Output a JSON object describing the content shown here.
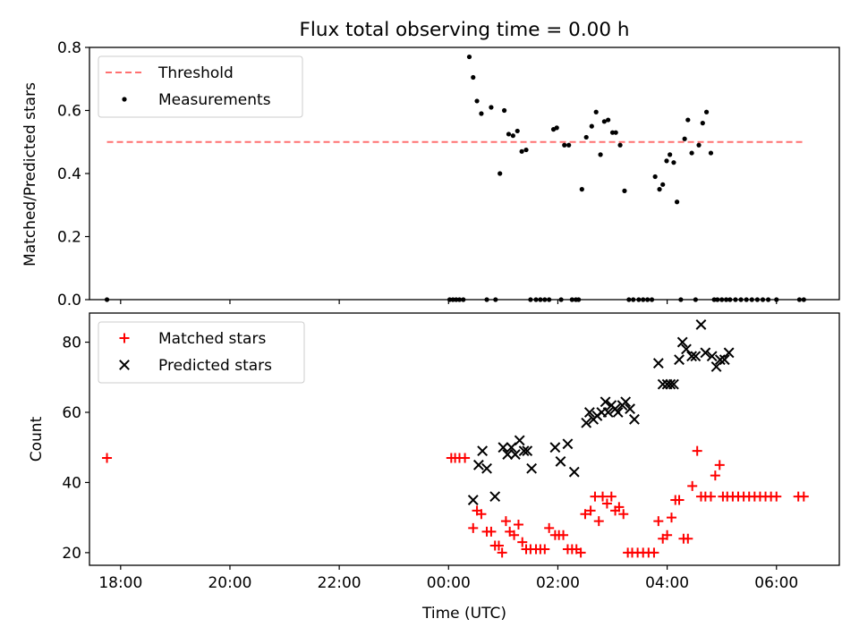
{
  "title": "Flux total observing time = 0.00 h",
  "xlabel": "Time (UTC)",
  "xticks": [
    {
      "t": -6.0,
      "label": "18:00"
    },
    {
      "t": -4.0,
      "label": "20:00"
    },
    {
      "t": -2.0,
      "label": "22:00"
    },
    {
      "t": 0.0,
      "label": "00:00"
    },
    {
      "t": 2.0,
      "label": "02:00"
    },
    {
      "t": 4.0,
      "label": "04:00"
    },
    {
      "t": 6.0,
      "label": "06:00"
    }
  ],
  "chart_data": [
    {
      "type": "scatter",
      "ylabel": "Matched/Predicted stars",
      "xlim": [
        -6.57,
        7.15
      ],
      "ylim": [
        0,
        0.8
      ],
      "yticks": [
        "0.0",
        "0.2",
        "0.4",
        "0.6",
        "0.8"
      ],
      "legend_position": "top-left",
      "threshold": {
        "name": "Threshold",
        "value": 0.5,
        "x": [
          -6.25,
          6.5
        ],
        "color": "#ff7070"
      },
      "series": [
        {
          "name": "Measurements",
          "color": "#000000",
          "marker": "dot",
          "x": [
            -6.25,
            0.02,
            0.08,
            0.14,
            0.2,
            0.27,
            0.38,
            0.45,
            0.52,
            0.6,
            0.7,
            0.78,
            0.86,
            0.94,
            1.02,
            1.1,
            1.18,
            1.26,
            1.34,
            1.42,
            1.5,
            1.6,
            1.68,
            1.76,
            1.84,
            1.92,
            1.98,
            2.06,
            2.12,
            2.2,
            2.26,
            2.33,
            2.38,
            2.44,
            2.52,
            2.62,
            2.7,
            2.78,
            2.85,
            2.92,
            3.0,
            3.06,
            3.14,
            3.22,
            3.3,
            3.38,
            3.48,
            3.56,
            3.64,
            3.72,
            3.78,
            3.86,
            3.92,
            3.99,
            4.05,
            4.12,
            4.18,
            4.25,
            4.32,
            4.38,
            4.45,
            4.52,
            4.58,
            4.65,
            4.72,
            4.8,
            4.86,
            4.92,
            5.0,
            5.08,
            5.15,
            5.25,
            5.35,
            5.45,
            5.55,
            5.65,
            5.75,
            5.85,
            6.0,
            6.42,
            6.5
          ],
          "y": [
            0.0,
            0.0,
            0.0,
            0.0,
            0.0,
            0.0,
            0.77,
            0.705,
            0.63,
            0.59,
            0.0,
            0.61,
            0.0,
            0.4,
            0.6,
            0.525,
            0.52,
            0.535,
            0.47,
            0.475,
            0.0,
            0.0,
            0.0,
            0.0,
            0.0,
            0.54,
            0.545,
            0.0,
            0.49,
            0.49,
            0.0,
            0.0,
            0.0,
            0.35,
            0.515,
            0.55,
            0.595,
            0.46,
            0.565,
            0.57,
            0.53,
            0.53,
            0.49,
            0.345,
            0.0,
            0.0,
            0.0,
            0.0,
            0.0,
            0.0,
            0.39,
            0.35,
            0.365,
            0.44,
            0.46,
            0.435,
            0.31,
            0.0,
            0.51,
            0.57,
            0.465,
            0.0,
            0.49,
            0.56,
            0.595,
            0.465,
            0.0,
            0.0,
            0.0,
            0.0,
            0.0,
            0.0,
            0.0,
            0.0,
            0.0,
            0.0,
            0.0,
            0.0,
            0.0,
            0.0,
            0.0
          ]
        }
      ]
    },
    {
      "type": "scatter",
      "ylabel": "Count",
      "xlim": [
        -6.57,
        7.15
      ],
      "ylim": [
        16.4,
        88.3
      ],
      "yticks": [
        20,
        40,
        60,
        80
      ],
      "legend_position": "top-left",
      "series": [
        {
          "name": "Matched stars",
          "color": "#ff0000",
          "marker": "plus",
          "x": [
            -6.25,
            0.05,
            0.12,
            0.2,
            0.3,
            0.45,
            0.52,
            0.6,
            0.7,
            0.78,
            0.85,
            0.92,
            0.98,
            1.05,
            1.12,
            1.2,
            1.28,
            1.35,
            1.42,
            1.5,
            1.6,
            1.68,
            1.76,
            1.84,
            1.95,
            2.02,
            2.1,
            2.18,
            2.26,
            2.34,
            2.42,
            2.5,
            2.6,
            2.68,
            2.75,
            2.82,
            2.9,
            2.98,
            3.05,
            3.12,
            3.2,
            3.28,
            3.36,
            3.46,
            3.56,
            3.66,
            3.76,
            3.84,
            3.92,
            4.0,
            4.08,
            4.15,
            4.22,
            4.3,
            4.38,
            4.46,
            4.55,
            4.62,
            4.7,
            4.8,
            4.88,
            4.96,
            5.02,
            5.1,
            5.2,
            5.3,
            5.4,
            5.5,
            5.6,
            5.7,
            5.8,
            5.9,
            6.0,
            6.4,
            6.5
          ],
          "y": [
            47,
            47,
            47,
            47,
            47,
            27,
            32,
            31,
            26,
            26,
            22,
            22,
            20,
            29,
            26,
            25,
            28,
            23,
            21,
            21,
            21,
            21,
            21,
            27,
            25,
            25,
            25,
            21,
            21,
            21,
            20,
            31,
            32,
            36,
            29,
            36,
            34,
            36,
            32,
            33,
            31,
            20,
            20,
            20,
            20,
            20,
            20,
            29,
            24,
            25,
            30,
            35,
            35,
            24,
            24,
            39,
            49,
            36,
            36,
            36,
            42,
            45,
            36,
            36,
            36,
            36,
            36,
            36,
            36,
            36,
            36,
            36,
            36,
            36,
            36
          ]
        },
        {
          "name": "Predicted stars",
          "color": "#000000",
          "marker": "x",
          "x": [
            0.45,
            0.55,
            0.62,
            0.7,
            0.85,
            1.0,
            1.08,
            1.15,
            1.22,
            1.3,
            1.38,
            1.44,
            1.52,
            1.95,
            2.05,
            2.18,
            2.3,
            2.52,
            2.58,
            2.65,
            2.72,
            2.8,
            2.87,
            2.92,
            2.98,
            3.05,
            3.1,
            3.18,
            3.24,
            3.32,
            3.4,
            3.84,
            3.92,
            4.0,
            4.06,
            4.12,
            4.22,
            4.28,
            4.35,
            4.45,
            4.52,
            4.62,
            4.7,
            4.82,
            4.9,
            4.97,
            5.05,
            5.13
          ],
          "y": [
            35,
            45,
            49,
            44,
            36,
            50,
            48,
            50,
            48,
            52,
            49,
            49,
            44,
            50,
            46,
            51,
            43,
            57,
            60,
            58,
            59,
            60,
            63,
            60,
            62,
            61,
            60,
            62,
            63,
            61,
            58,
            74,
            68,
            68,
            68,
            68,
            75,
            80,
            78,
            76,
            76,
            85,
            77,
            76,
            73,
            75,
            75,
            77
          ]
        }
      ]
    }
  ]
}
